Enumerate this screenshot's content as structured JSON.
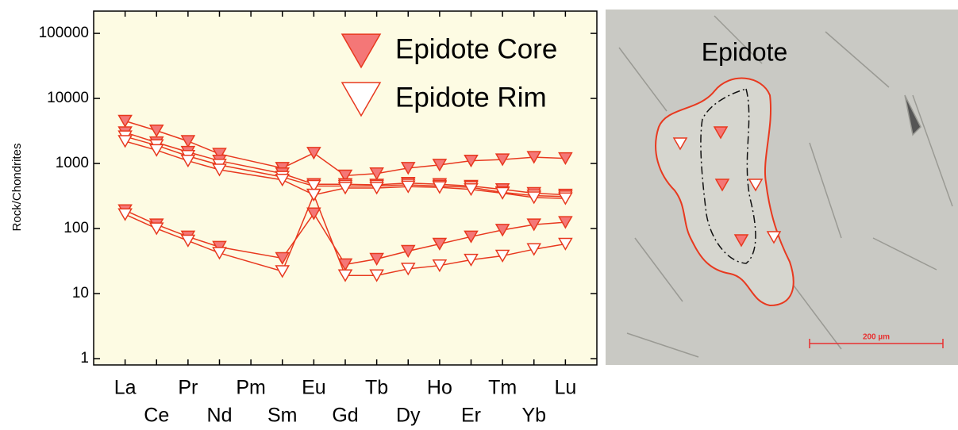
{
  "chart_data": {
    "type": "line",
    "ylabel": "Rock/Chondrites",
    "log_scale": true,
    "x": [
      1,
      2,
      3,
      4,
      6,
      7,
      8,
      9,
      10,
      11,
      12,
      13,
      14,
      15
    ],
    "xlim": [
      0,
      16
    ],
    "xticks": [
      {
        "value": 1,
        "label": "La"
      },
      {
        "value": 2,
        "label": "Ce"
      },
      {
        "value": 3,
        "label": "Pr"
      },
      {
        "value": 4,
        "label": "Nd"
      },
      {
        "value": 5,
        "label": "Pm"
      },
      {
        "value": 6,
        "label": "Sm"
      },
      {
        "value": 7,
        "label": "Eu"
      },
      {
        "value": 8,
        "label": "Gd"
      },
      {
        "value": 9,
        "label": "Tb"
      },
      {
        "value": 10,
        "label": "Dy"
      },
      {
        "value": 11,
        "label": "Ho"
      },
      {
        "value": 12,
        "label": "Er"
      },
      {
        "value": 13,
        "label": "Tm"
      },
      {
        "value": 14,
        "label": "Yb"
      },
      {
        "value": 15,
        "label": "Lu"
      }
    ],
    "ylim": [
      0.8,
      220000
    ],
    "yticks": [
      1,
      10,
      100,
      1000,
      10000,
      100000
    ],
    "line_color": "#e8391f",
    "core_fill": "#f47777",
    "rim_fill": "#ffffff",
    "background": "#fdfbe3",
    "legend": [
      {
        "label": "Epidote Core",
        "marker": "core"
      },
      {
        "label": "Epidote Rim",
        "marker": "rim"
      }
    ],
    "series": [
      {
        "marker": "core",
        "values": [
          4500,
          3200,
          2200,
          1400,
          850,
          1450,
          650,
          700,
          850,
          950,
          1100,
          1150,
          1250,
          1200
        ]
      },
      {
        "marker": "core",
        "values": [
          3000,
          2100,
          1500,
          1100,
          700,
          480,
          480,
          470,
          500,
          480,
          450,
          400,
          350,
          330
        ]
      },
      {
        "marker": "rim",
        "values": [
          2600,
          1900,
          1300,
          950,
          620,
          450,
          450,
          450,
          470,
          450,
          430,
          360,
          320,
          310
        ]
      },
      {
        "marker": "rim",
        "values": [
          2200,
          1600,
          1100,
          800,
          560,
          330,
          420,
          420,
          440,
          430,
          400,
          350,
          300,
          290
        ]
      },
      {
        "marker": "core",
        "values": [
          190,
          115,
          75,
          52,
          35,
          170,
          28,
          34,
          45,
          58,
          75,
          95,
          115,
          125
        ]
      },
      {
        "marker": "rim",
        "values": [
          165,
          100,
          65,
          42,
          22,
          330,
          19,
          19,
          24,
          27,
          33,
          38,
          48,
          58
        ]
      }
    ]
  },
  "image": {
    "label": "Epidote",
    "scale_bar": "200 µm"
  }
}
